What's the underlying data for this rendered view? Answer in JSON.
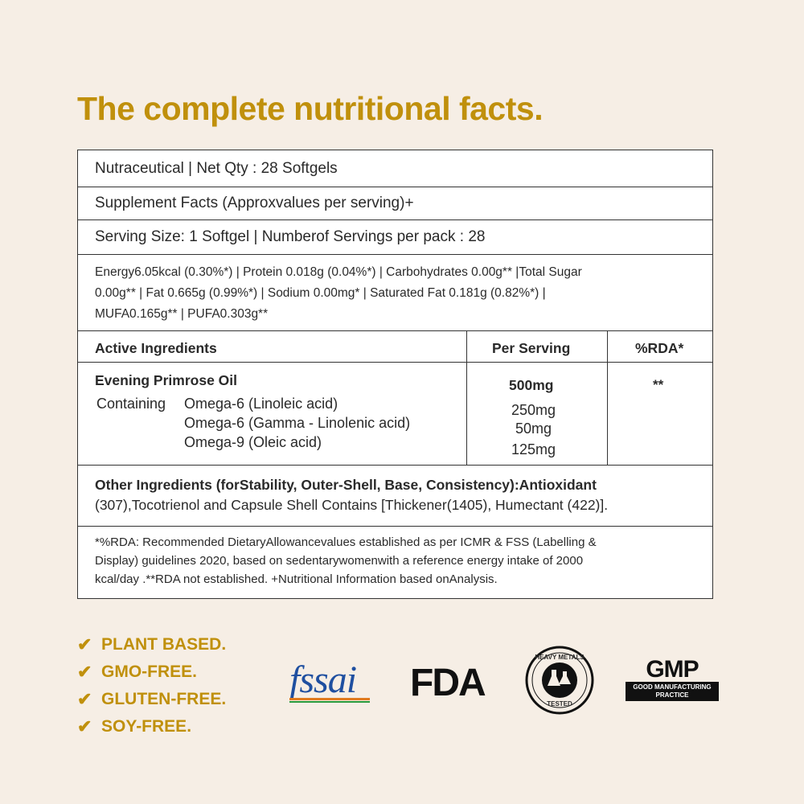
{
  "title": "The complete nutritional facts.",
  "table": {
    "row1": "Nutraceutical |  Net Qty : 28 Softgels",
    "row2": "Supplement Facts (Approxvalues per serving)+",
    "row3": "Serving Size: 1 Softgel | Numberof Servings per pack : 28",
    "nutrition_lines": [
      "Energy6.05kcal (0.30%*) | Protein 0.018g (0.04%*) | Carbohydrates 0.00g** |Total Sugar",
      "0.00g** | Fat 0.665g (0.99%*) | Sodium 0.00mg* | Saturated Fat 0.181g (0.82%*) |",
      "MUFA0.165g** | PUFA0.303g**"
    ],
    "headers": [
      "Active Ingredients",
      "Per Serving",
      "%RDA*"
    ],
    "ingredient": {
      "name": "Evening Primrose Oil",
      "amount": "500mg",
      "rda": "**",
      "containing_label": "Containing",
      "components": [
        {
          "name": "Omega-6 (Linoleic acid)",
          "amount": "250mg"
        },
        {
          "name": "Omega-6 (Gamma - Linolenic acid)",
          "amount": "50mg"
        },
        {
          "name": "Omega-9 (Oleic acid)",
          "amount": "125mg"
        }
      ]
    },
    "other_bold": "Other Ingredients (forStability, Outer-Shell, Base, Consistency):Antioxidant",
    "other_rest": "(307),Tocotrienol and Capsule Shell Contains [Thickener(1405), Humectant (422)].",
    "footnote_lines": [
      "*%RDA: Recommended DietaryAllowancevalues established as per ICMR & FSS (Labelling &",
      "Display) guidelines 2020, based on sedentarywomenwith a reference energy intake of 2000",
      "kcal/day .**RDA not established. +Nutritional Information based onAnalysis."
    ]
  },
  "badges": [
    "PLANT BASED.",
    "GMO-FREE.",
    "GLUTEN-FREE.",
    "SOY-FREE."
  ],
  "logos": {
    "fssai": "fssai",
    "fda": "FDA",
    "heavy_metals_top": "HEAVY METALS",
    "heavy_metals_bottom": "TESTED",
    "gmp": "GMP",
    "gmp_sub1": "GOOD MANUFACTURING",
    "gmp_sub2": "PRACTICE"
  },
  "colors": {
    "accent": "#c0900c",
    "background": "#f6eee5",
    "border": "#333333"
  }
}
